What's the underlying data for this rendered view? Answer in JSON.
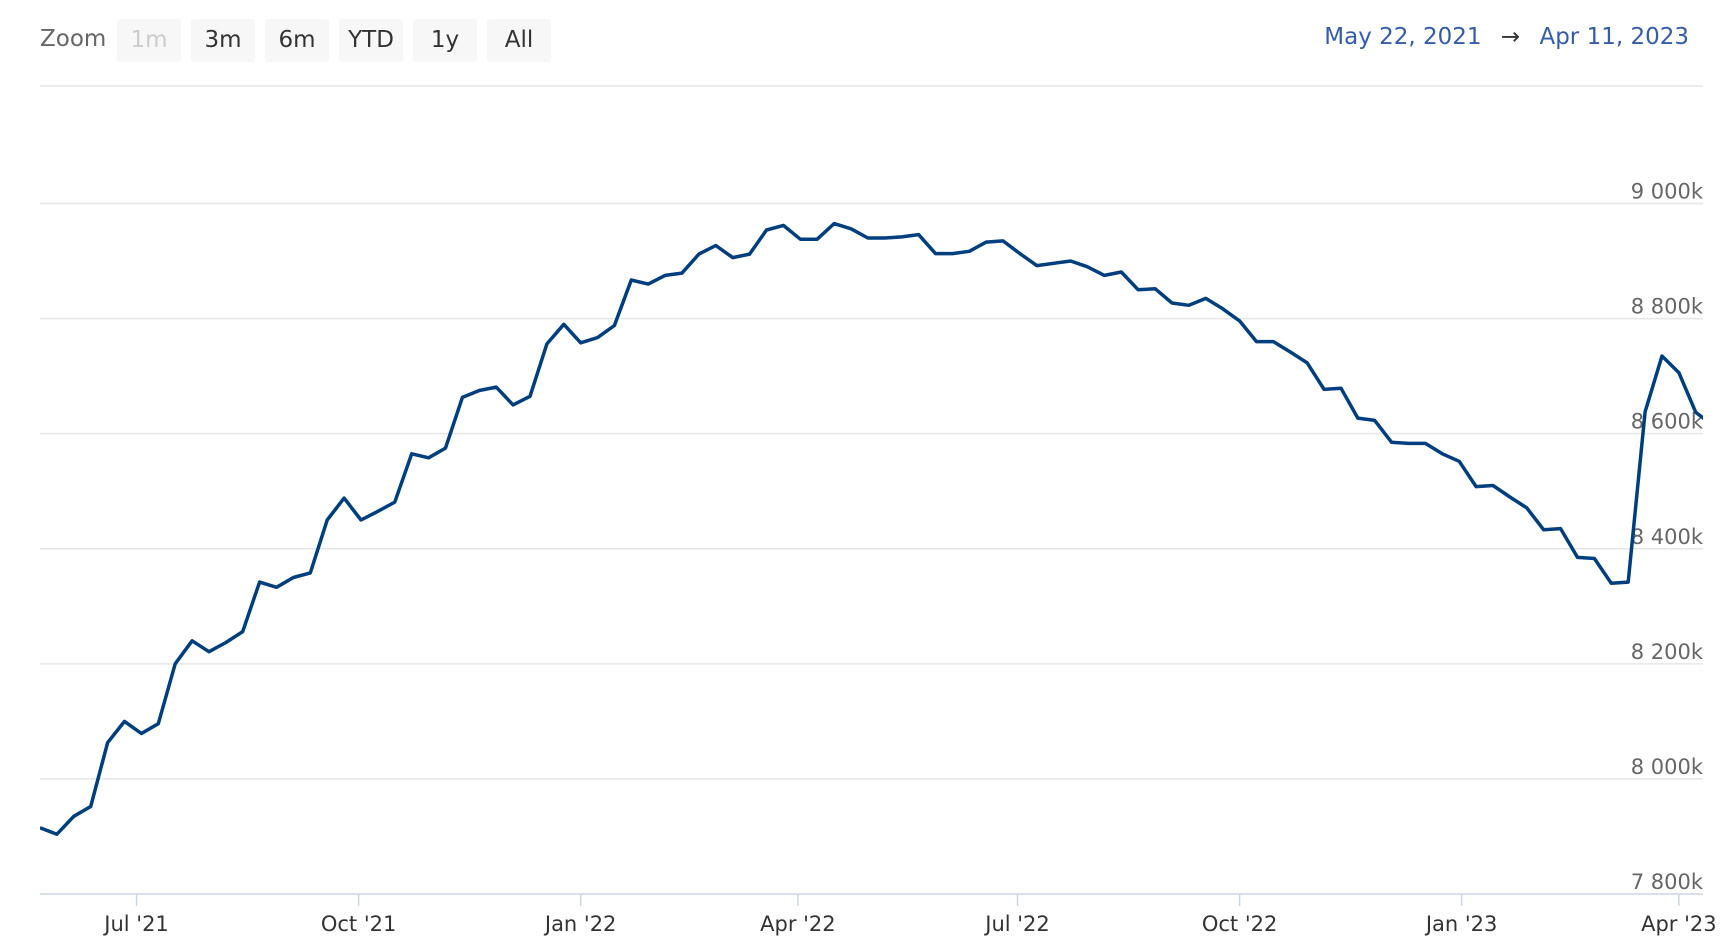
{
  "range_selector": {
    "label": "Zoom",
    "buttons": [
      {
        "label": "1m",
        "disabled": true
      },
      {
        "label": "3m",
        "disabled": false
      },
      {
        "label": "6m",
        "disabled": false
      },
      {
        "label": "YTD",
        "disabled": false
      },
      {
        "label": "1y",
        "disabled": false
      },
      {
        "label": "All",
        "disabled": false
      }
    ],
    "from": "May 22, 2021",
    "arrow": "→",
    "to": "Apr 11, 2023"
  },
  "chart_data": {
    "type": "line",
    "title": "",
    "xlabel": "",
    "ylabel": "",
    "x_start": "2021-05-22",
    "x_interval": "1 week",
    "xlim": [
      "2021-05-22",
      "2023-04-11"
    ],
    "ylim": [
      7800,
      9000
    ],
    "y_unit_suffix": "k",
    "yticks": [
      "7 800k",
      "8 000k",
      "8 200k",
      "8 400k",
      "8 600k",
      "8 800k",
      "9 000k"
    ],
    "ytick_values": [
      7800,
      8000,
      8200,
      8400,
      8600,
      8800,
      9000
    ],
    "xticks": [
      {
        "label": "Jul '21",
        "date": "2021-07-01"
      },
      {
        "label": "Oct '21",
        "date": "2021-10-01"
      },
      {
        "label": "Jan '22",
        "date": "2022-01-01"
      },
      {
        "label": "Apr '22",
        "date": "2022-04-01"
      },
      {
        "label": "Jul '22",
        "date": "2022-07-01"
      },
      {
        "label": "Oct '22",
        "date": "2022-10-01"
      },
      {
        "label": "Jan '23",
        "date": "2023-01-01"
      },
      {
        "label": "Apr '23",
        "date": "2023-04-01"
      }
    ],
    "grid": true,
    "line_color": "#003f7f",
    "series": [
      {
        "values": [
          7915,
          7904,
          7935,
          7952,
          8063,
          8100,
          8079,
          8096,
          8200,
          8240,
          8221,
          8237,
          8256,
          8342,
          8333,
          8350,
          8358,
          8450,
          8488,
          8450,
          8465,
          8481,
          8565,
          8558,
          8575,
          8663,
          8675,
          8681,
          8650,
          8665,
          8756,
          8790,
          8758,
          8767,
          8788,
          8867,
          8860,
          8875,
          8879,
          8912,
          8927,
          8906,
          8912,
          8954,
          8962,
          8938,
          8938,
          8965,
          8956,
          8940,
          8940,
          8942,
          8946,
          8913,
          8913,
          8917,
          8933,
          8935,
          8913,
          8892,
          8896,
          8900,
          8890,
          8875,
          8881,
          8850,
          8852,
          8827,
          8823,
          8835,
          8817,
          8796,
          8760,
          8760,
          8742,
          8723,
          8677,
          8679,
          8627,
          8623,
          8585,
          8583,
          8583,
          8565,
          8552,
          8508,
          8510,
          8490,
          8471,
          8433,
          8435,
          8385,
          8383,
          8340,
          8342,
          8638,
          8735,
          8706,
          8637,
          8615
        ]
      }
    ]
  }
}
